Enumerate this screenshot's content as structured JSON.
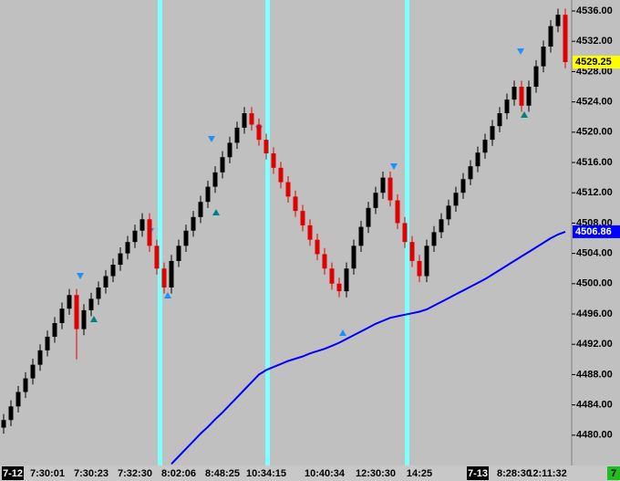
{
  "chart_data": {
    "type": "candlestick",
    "categories": [
      null,
      "7-12",
      null,
      null,
      null,
      null,
      "7:30:01",
      null,
      null,
      null,
      null,
      null,
      "7:30:23",
      null,
      null,
      null,
      null,
      null,
      "7:32:30",
      null,
      null,
      null,
      null,
      null,
      "8:02:06",
      null,
      null,
      null,
      null,
      null,
      "8:48:25",
      null,
      null,
      null,
      null,
      null,
      "10:34:15",
      null,
      null,
      null,
      null,
      null,
      null,
      null,
      "10:40:34",
      null,
      null,
      null,
      null,
      null,
      null,
      "12:30:30",
      null,
      null,
      null,
      null,
      null,
      "14:25",
      null,
      null,
      null,
      null,
      null,
      null,
      null,
      "7-13",
      null,
      null,
      null,
      null,
      "8:28:30",
      null,
      null,
      null,
      null,
      null,
      null,
      "12:11:32"
    ],
    "open": [
      4481,
      4482,
      4483.8,
      4485.7,
      4487.5,
      4489.3,
      4491.2,
      4493,
      4494.8,
      4496.7,
      4498.5,
      4494,
      4496.5,
      4498,
      4499.5,
      4501,
      4502.5,
      4504,
      4505.5,
      4507,
      4508.5,
      4505,
      4502,
      4499.5,
      4503,
      4505,
      4507,
      4508.8,
      4510.8,
      4512.8,
      4514.7,
      4516.7,
      4518.6,
      4520.6,
      4522.5,
      4521,
      4519,
      4517.2,
      4515.3,
      4513.4,
      4511.5,
      4509.6,
      4507.7,
      4505.8,
      4503.9,
      4502,
      4500,
      4499,
      4502,
      4505,
      4507.5,
      4510,
      4512,
      4514,
      4511,
      4508,
      4505.5,
      4503,
      4501,
      4505,
      4506.8,
      4508.5,
      4510.3,
      4512,
      4513.8,
      4515.5,
      4517.3,
      4519,
      4520.8,
      4522.5,
      4524.3,
      4526,
      4523.5,
      4526,
      4528.7,
      4531.3,
      4534,
      4535.5
    ],
    "high": [
      4482.8,
      4484.6,
      4486.5,
      4488.3,
      4490.1,
      4492,
      4493.8,
      4495.6,
      4497.5,
      4499.3,
      4499.3,
      4497.3,
      4498.8,
      4500.3,
      4501.8,
      4503.3,
      4504.8,
      4506.3,
      4507.8,
      4509.3,
      4509.3,
      4505.8,
      4502.8,
      4503.8,
      4505.8,
      4507.8,
      4509.6,
      4511.6,
      4513.6,
      4515.5,
      4517.5,
      4519.4,
      4521.4,
      4523.3,
      4523.3,
      4521.8,
      4519.8,
      4518,
      4516.1,
      4514.2,
      4512.3,
      4510.4,
      4508.5,
      4506.6,
      4504.7,
      4502.8,
      4500.8,
      4502.8,
      4505.8,
      4508.3,
      4510.8,
      4512.8,
      4514.8,
      4514.8,
      4511.8,
      4508.8,
      4506.3,
      4503.8,
      4505.8,
      4507.6,
      4509.3,
      4511.1,
      4512.8,
      4514.6,
      4516.3,
      4518.1,
      4519.8,
      4521.6,
      4523.3,
      4525.1,
      4526.8,
      4526.8,
      4526.8,
      4529.5,
      4532.1,
      4534.8,
      4536.3,
      4536.3
    ],
    "low": [
      4480.2,
      4481.2,
      4483,
      4484.9,
      4486.7,
      4488.5,
      4490.4,
      4492.2,
      4494,
      4495.9,
      4490,
      4493.2,
      4495.7,
      4497.2,
      4498.7,
      4500.2,
      4501.7,
      4503.2,
      4504.7,
      4506.2,
      4504.2,
      4501.2,
      4498.7,
      4498.7,
      4502.2,
      4504.2,
      4506.2,
      4508,
      4510,
      4512,
      4513.9,
      4515.9,
      4517.8,
      4519.8,
      4520.2,
      4518.2,
      4516.4,
      4514.5,
      4512.6,
      4510.7,
      4508.8,
      4506.9,
      4505,
      4503.1,
      4501.2,
      4499.2,
      4498.2,
      4498.2,
      4501.2,
      4504.2,
      4506.7,
      4509.2,
      4511.2,
      4510.2,
      4507.2,
      4504.7,
      4502.2,
      4500.2,
      4500.2,
      4504.2,
      4506,
      4507.7,
      4509.5,
      4511.2,
      4513,
      4514.7,
      4516.5,
      4518.2,
      4520,
      4521.7,
      4523.5,
      4522.7,
      4522.7,
      4525.2,
      4527.9,
      4530.5,
      4533.2,
      4528.45
    ],
    "close": [
      4482,
      4483.8,
      4485.7,
      4487.5,
      4489.3,
      4491.2,
      4493,
      4494.8,
      4496.7,
      4498.5,
      4494,
      4496.5,
      4498,
      4499.5,
      4501,
      4502.5,
      4504,
      4505.5,
      4507,
      4508.5,
      4505,
      4502,
      4499.5,
      4503,
      4505,
      4507,
      4508.8,
      4510.8,
      4512.8,
      4514.7,
      4516.7,
      4518.6,
      4520.6,
      4522.5,
      4521,
      4519,
      4517.2,
      4515.3,
      4513.4,
      4511.5,
      4509.6,
      4507.7,
      4505.8,
      4503.9,
      4502,
      4500,
      4499,
      4502,
      4505,
      4507.5,
      4510,
      4512,
      4514,
      4511,
      4508,
      4505.5,
      4503,
      4501,
      4505,
      4506.8,
      4508.5,
      4510.3,
      4512,
      4513.8,
      4515.5,
      4517.3,
      4519,
      4520.8,
      4522.5,
      4524.3,
      4526,
      4523.5,
      4526,
      4528.7,
      4531.3,
      4534,
      4535.5,
      4529.25
    ],
    "up_color": "#000000",
    "down_color": "#e00000",
    "overlay": {
      "color": "#0000ff",
      "values": [
        null,
        null,
        null,
        null,
        null,
        null,
        null,
        null,
        null,
        null,
        null,
        null,
        null,
        null,
        null,
        null,
        null,
        null,
        null,
        null,
        null,
        null,
        null,
        4476.2,
        4477.2,
        4478.2,
        4479.2,
        4480.2,
        4481.1,
        4482.1,
        4483,
        4484,
        4485,
        4486,
        4487,
        4488,
        4488.6,
        4489,
        4489.4,
        4489.8,
        4490.1,
        4490.4,
        4490.8,
        4491.1,
        4491.4,
        4491.8,
        4492.2,
        4492.7,
        4493.2,
        4493.7,
        4494.2,
        4494.7,
        4495.1,
        4495.5,
        4495.7,
        4495.9,
        4496.1,
        4496.3,
        4496.6,
        4497.1,
        4497.6,
        4498.1,
        4498.6,
        4499.1,
        4499.6,
        4500.1,
        4500.6,
        4501.2,
        4501.8,
        4502.4,
        4503,
        4503.6,
        4504.2,
        4504.8,
        4505.4,
        4506,
        4506.5,
        4506.86
      ]
    },
    "ylim": [
      4476,
      4537.45
    ],
    "yticks": [
      {
        "value": 4480,
        "label": "4480.00"
      },
      {
        "value": 4484,
        "label": "4484.00"
      },
      {
        "value": 4488,
        "label": "4488.00"
      },
      {
        "value": 4492,
        "label": "4492.00"
      },
      {
        "value": 4496,
        "label": "4496.00"
      },
      {
        "value": 4500,
        "label": "4500.00"
      },
      {
        "value": 4504,
        "label": "4504.00"
      },
      {
        "value": 4508,
        "label": "4508.00"
      },
      {
        "value": 4512,
        "label": "4512.00"
      },
      {
        "value": 4516,
        "label": "4516.00"
      },
      {
        "value": 4520,
        "label": "4520.00"
      },
      {
        "value": 4524,
        "label": "4524.00"
      },
      {
        "value": 4528,
        "label": "4528.00"
      },
      {
        "value": 4532,
        "label": "4532.00"
      },
      {
        "value": 4536,
        "label": "4536.00"
      }
    ],
    "corner_label": "7"
  }
}
